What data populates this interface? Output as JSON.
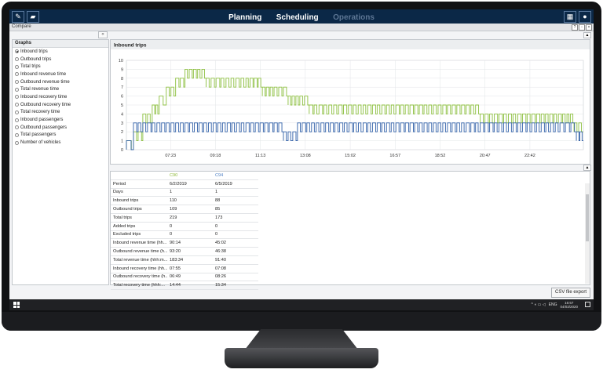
{
  "app": {
    "nav": [
      {
        "label": "Planning",
        "active": true
      },
      {
        "label": "Scheduling",
        "active": true
      },
      {
        "label": "Operations",
        "active": false
      }
    ],
    "window_title": "Compare"
  },
  "graphs": {
    "title": "Graphs",
    "options": [
      "Inbound trips",
      "Outbound trips",
      "Total trips",
      "Inbound revenue time",
      "Outbound revenue time",
      "Total revenue time",
      "Inbound recovery time",
      "Outbound recovery time",
      "Total recovery time",
      "Inbound passengers",
      "Outbound passengers",
      "Total passengers",
      "Number of vehicles"
    ],
    "selected": 0
  },
  "chart_data": {
    "type": "line",
    "title": "Inbound trips",
    "y_ticks": [
      "0",
      "1",
      "2",
      "3",
      "4",
      "5",
      "6",
      "7",
      "8",
      "9",
      "10"
    ],
    "ylim": [
      0,
      10
    ],
    "x_ticks": [
      "07:23",
      "09:18",
      "11:13",
      "13:08",
      "15:02",
      "16:57",
      "18:52",
      "20:47",
      "22:42"
    ],
    "xlim": [
      5.5,
      25
    ],
    "grid": true,
    "series": [
      {
        "color": "#8cbf3f",
        "points": [
          [
            5.5,
            0
          ],
          [
            5.8,
            1
          ],
          [
            6.2,
            3
          ],
          [
            6.6,
            4
          ],
          [
            6.9,
            5
          ],
          [
            7.2,
            6
          ],
          [
            7.6,
            7
          ],
          [
            8.0,
            8
          ],
          [
            8.9,
            7
          ],
          [
            10.6,
            7
          ],
          [
            11.3,
            6
          ],
          [
            11.8,
            6
          ],
          [
            12.4,
            5
          ],
          [
            12.9,
            5
          ],
          [
            13.3,
            4
          ],
          [
            15.6,
            4
          ],
          [
            16.0,
            4
          ],
          [
            18.0,
            4
          ],
          [
            19.0,
            4
          ],
          [
            20.4,
            4
          ],
          [
            20.6,
            3
          ],
          [
            22.8,
            3
          ],
          [
            23.2,
            3
          ],
          [
            24.3,
            3
          ],
          [
            24.6,
            2
          ],
          [
            25,
            0
          ]
        ],
        "square_wave": true
      },
      {
        "color": "#3160a8",
        "points": [
          [
            5.5,
            0
          ],
          [
            5.8,
            2
          ],
          [
            7.0,
            2
          ],
          [
            8.0,
            2
          ],
          [
            9.0,
            2
          ],
          [
            10.0,
            2
          ],
          [
            11.0,
            2
          ],
          [
            11.8,
            2
          ],
          [
            12.2,
            1
          ],
          [
            12.8,
            2
          ],
          [
            13.0,
            2
          ],
          [
            14.0,
            2
          ],
          [
            15.0,
            2
          ],
          [
            16.0,
            2
          ],
          [
            17.0,
            2
          ],
          [
            18.0,
            2
          ],
          [
            19.0,
            2
          ],
          [
            20.0,
            2
          ],
          [
            21.0,
            2
          ],
          [
            22.0,
            2
          ],
          [
            23.0,
            2
          ],
          [
            24.0,
            2
          ],
          [
            24.7,
            1
          ],
          [
            25,
            0
          ]
        ],
        "square_wave": true
      }
    ]
  },
  "compare_table": {
    "headers": [
      "",
      "C90",
      "C94"
    ],
    "rows": [
      [
        "Period",
        "6/2/2019",
        "6/5/2019"
      ],
      [
        "Days",
        "1",
        "1"
      ],
      [
        "Inbound trips",
        "110",
        "88"
      ],
      [
        "Outbound trips",
        "109",
        "85"
      ],
      [
        "Total trips",
        "219",
        "173"
      ],
      [
        "Added trips",
        "0",
        "0"
      ],
      [
        "Excluded trips",
        "0",
        "0"
      ],
      [
        "Inbound revenue time (hh...",
        "90:14",
        "45:02"
      ],
      [
        "Outbound revenue time (h...",
        "93:20",
        "46:38"
      ],
      [
        "Total revenue time (hhh:m...",
        "183:34",
        "91:40"
      ],
      [
        "Inbound recovery time (hh...",
        "07:55",
        "07:08"
      ],
      [
        "Outbound recovery time (h...",
        "06:49",
        "08:26"
      ],
      [
        "Total recovery time (hhh:...",
        "14:44",
        "15:34"
      ]
    ]
  },
  "csv_button": "CSV file export",
  "taskbar": {
    "lang": "ENG",
    "time": "16:57",
    "date": "04/03/2020"
  }
}
